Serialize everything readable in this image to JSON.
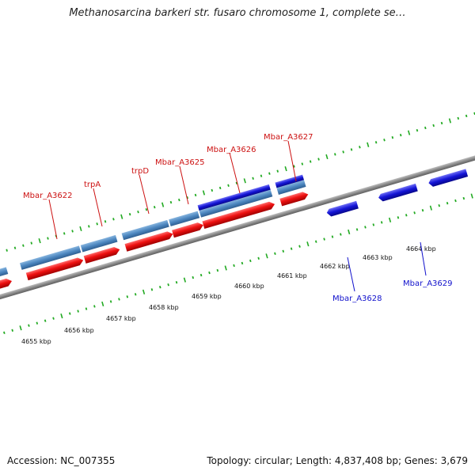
{
  "title": "Methanosarcina barkeri str. fusaro chromosome 1, complete se…",
  "accession": "Accession: NC_007355",
  "summary": "Topology: circular; Length: 4,837,408 bp; Genes: 3,679",
  "colors": {
    "forward_cds": "#ee1111",
    "reverse_cds": "#1414d6",
    "gene_light_blue": "#4d87c0",
    "backbone": "#8a8a8a",
    "ticks": "#22aa22",
    "forward_label": "#cc1111",
    "reverse_label": "#1111cc"
  },
  "scale_labels": [
    "4655 kbp",
    "4656 kbp",
    "4657 kbp",
    "4658 kbp",
    "4659 kbp",
    "4660 kbp",
    "4661 kbp",
    "4662 kbp",
    "4663 kbp",
    "4664 kbp"
  ],
  "forward_gene_labels": [
    "Mbar_A3622",
    "trpA",
    "trpD",
    "Mbar_A3625",
    "Mbar_A3626",
    "Mbar_A3627"
  ],
  "reverse_gene_labels": [
    "Mbar_A3628",
    "Mbar_A3629"
  ]
}
